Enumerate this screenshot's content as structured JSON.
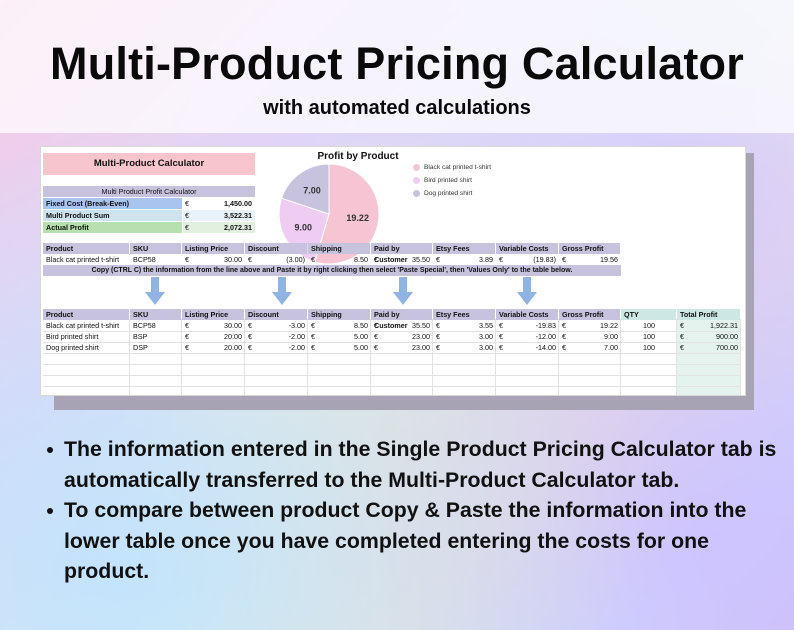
{
  "header": {
    "title": "Multi-Product Pricing Calculator",
    "subtitle": "with automated calculations"
  },
  "sheet": {
    "calc_title": "Multi-Product Calculator",
    "summary": {
      "header": "Multi Product Profit Calculator",
      "currency": "€",
      "rows": [
        {
          "label": "Fixed Cost (Break-Even)",
          "value": "1,450.00",
          "color": "#a9c4ee"
        },
        {
          "label": "Multi Product Sum",
          "value": "3,522.31",
          "color": "#cfe3ef"
        },
        {
          "label": "Actual Profit",
          "value": "2,072.31",
          "color": "#b7dfb0"
        }
      ]
    },
    "chart": {
      "title": "Profit by Product",
      "chart_data": {
        "type": "pie",
        "title": "Profit by Product",
        "categories": [
          "Black cat printed t-shirt",
          "Bird printed shirt",
          "Dog printed shirt"
        ],
        "values": [
          19.22,
          9.0,
          7.0
        ],
        "labels": [
          "19.22",
          "9.00",
          "7.00"
        ],
        "colors": [
          "#f7c4d4",
          "#efcdf2",
          "#c7c2dd"
        ],
        "legend": "right"
      }
    },
    "single_table": {
      "headers": [
        "Product",
        "SKU",
        "Listing Price",
        "Discount",
        "Shipping",
        "Paid by Customer",
        "Etsy Fees",
        "Variable Costs",
        "Gross Profit"
      ],
      "row": {
        "product": "Black cat printed t-shirt",
        "sku": "BCP58",
        "listing_price": "30.00",
        "discount": "(3.00)",
        "shipping": "8.50",
        "paid_by_customer": "35.50",
        "etsy_fees": "3.89",
        "variable_costs": "(19.83)",
        "gross_profit": "19.56"
      }
    },
    "note": "Copy (CTRL C) the information from the line above and Paste it by right clicking then select 'Paste Special', then 'Values Only' to the table below.",
    "multi_table": {
      "headers": [
        "Product",
        "SKU",
        "Listing Price",
        "Discount",
        "Shipping",
        "Paid by Customer",
        "Etsy Fees",
        "Variable Costs",
        "Gross Profit",
        "QTY",
        "Total Profit"
      ],
      "rows": [
        {
          "product": "Black cat printed t-shirt",
          "sku": "BCP58",
          "listing_price": "30.00",
          "discount": "-3.00",
          "shipping": "8.50",
          "paid_by_customer": "35.50",
          "etsy_fees": "3.55",
          "variable_costs": "-19.83",
          "gross_profit": "19.22",
          "qty": "100",
          "total_profit": "1,922.31"
        },
        {
          "product": "Bird printed shirt",
          "sku": "BSP",
          "listing_price": "20.00",
          "discount": "-2.00",
          "shipping": "5.00",
          "paid_by_customer": "23.00",
          "etsy_fees": "3.00",
          "variable_costs": "-12.00",
          "gross_profit": "9.00",
          "qty": "100",
          "total_profit": "900.00"
        },
        {
          "product": "Dog printed shirt",
          "sku": "DSP",
          "listing_price": "20.00",
          "discount": "-2.00",
          "shipping": "5.00",
          "paid_by_customer": "23.00",
          "etsy_fees": "3.00",
          "variable_costs": "-14.00",
          "gross_profit": "7.00",
          "qty": "100",
          "total_profit": "700.00"
        }
      ]
    },
    "colors": {
      "header": "#c7c2dd",
      "arrow": "#8fb4e3",
      "teal": "#cde8e4"
    }
  },
  "bullets": [
    "The information entered in the Single Product Pricing Calculator tab is automatically transferred to the Multi-Product Calculator tab.",
    "To compare between product Copy & Paste the information into the lower table once you have completed entering the costs for one product."
  ]
}
